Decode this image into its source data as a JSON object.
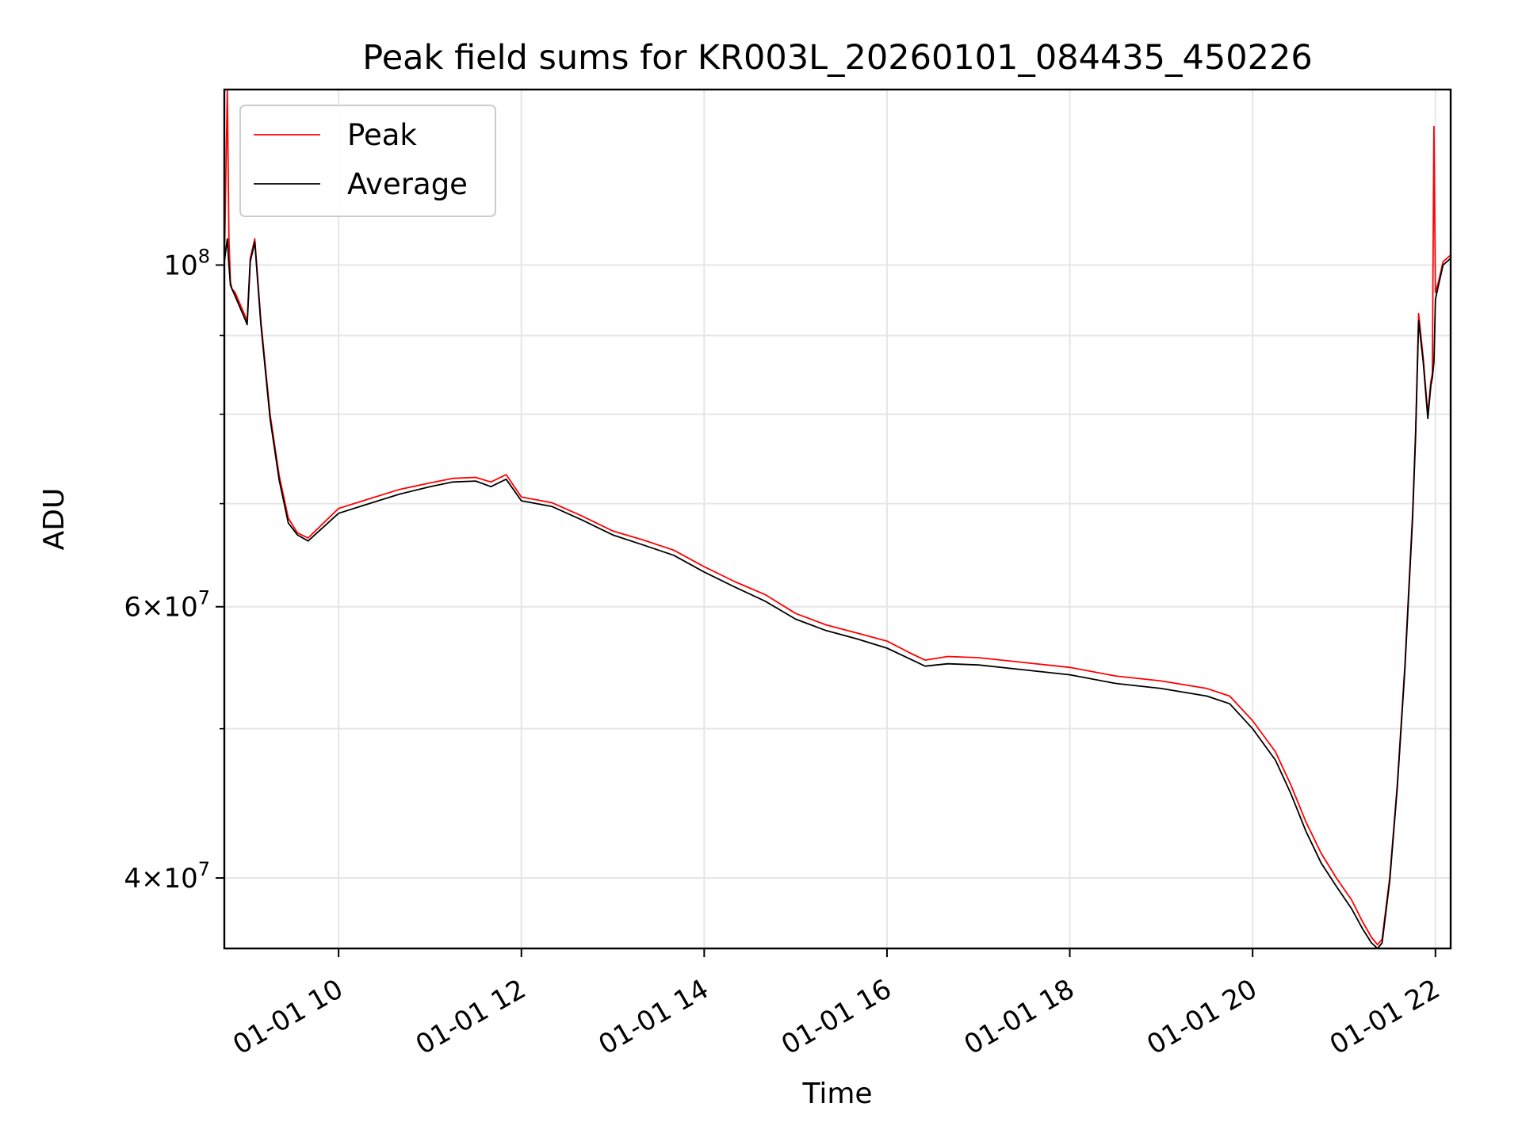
{
  "chart_data": {
    "type": "line",
    "title": "Peak field sums for KR003L_20260101_084435_450226",
    "xlabel": "Time",
    "ylabel": "ADU",
    "yscale": "log",
    "xlim": [
      "2026-01-01 08:45",
      "2026-01-01 22:10"
    ],
    "ylim": [
      36000000,
      130000000
    ],
    "grid": true,
    "legend_position": "upper-left",
    "x_ticks": [
      "01-01 10",
      "01-01 12",
      "01-01 14",
      "01-01 16",
      "01-01 18",
      "01-01 20",
      "01-01 22"
    ],
    "x_tick_times": [
      "2026-01-01 10:00",
      "2026-01-01 12:00",
      "2026-01-01 14:00",
      "2026-01-01 16:00",
      "2026-01-01 18:00",
      "2026-01-01 20:00",
      "2026-01-01 22:00"
    ],
    "y_ticks": [
      {
        "value": 40000000,
        "mantissa": "4",
        "exponent": "7"
      },
      {
        "value": 60000000,
        "mantissa": "6",
        "exponent": "7"
      },
      {
        "value": 100000000,
        "mantissa": "",
        "exponent": "8"
      }
    ],
    "y_minor_ticks": [
      50000000,
      70000000,
      80000000,
      90000000
    ],
    "series": [
      {
        "name": "Peak",
        "color": "#ff0000",
        "x": [
          "2026-01-01 08:45",
          "2026-01-01 08:47",
          "2026-01-01 08:48",
          "2026-01-01 08:49",
          "2026-01-01 08:50",
          "2026-01-01 08:52",
          "2026-01-01 08:58",
          "2026-01-01 09:00",
          "2026-01-01 09:02",
          "2026-01-01 09:05",
          "2026-01-01 09:09",
          "2026-01-01 09:15",
          "2026-01-01 09:21",
          "2026-01-01 09:27",
          "2026-01-01 09:33",
          "2026-01-01 09:40",
          "2026-01-01 10:00",
          "2026-01-01 10:20",
          "2026-01-01 10:40",
          "2026-01-01 11:00",
          "2026-01-01 11:15",
          "2026-01-01 11:30",
          "2026-01-01 11:40",
          "2026-01-01 11:50",
          "2026-01-01 12:00",
          "2026-01-01 12:20",
          "2026-01-01 12:40",
          "2026-01-01 13:00",
          "2026-01-01 13:20",
          "2026-01-01 13:40",
          "2026-01-01 14:00",
          "2026-01-01 14:20",
          "2026-01-01 14:40",
          "2026-01-01 15:00",
          "2026-01-01 15:20",
          "2026-01-01 15:40",
          "2026-01-01 16:00",
          "2026-01-01 16:15",
          "2026-01-01 16:25",
          "2026-01-01 16:40",
          "2026-01-01 17:00",
          "2026-01-01 17:30",
          "2026-01-01 18:00",
          "2026-01-01 18:30",
          "2026-01-01 19:00",
          "2026-01-01 19:30",
          "2026-01-01 19:45",
          "2026-01-01 20:00",
          "2026-01-01 20:15",
          "2026-01-01 20:25",
          "2026-01-01 20:35",
          "2026-01-01 20:45",
          "2026-01-01 20:55",
          "2026-01-01 21:05",
          "2026-01-01 21:12",
          "2026-01-01 21:18",
          "2026-01-01 21:22",
          "2026-01-01 21:25",
          "2026-01-01 21:30",
          "2026-01-01 21:35",
          "2026-01-01 21:40",
          "2026-01-01 21:45",
          "2026-01-01 21:47",
          "2026-01-01 21:49",
          "2026-01-01 21:52",
          "2026-01-01 21:55",
          "2026-01-01 21:57",
          "2026-01-01 21:58",
          "2026-01-01 21:59",
          "2026-01-01 22:00",
          "2026-01-01 22:02",
          "2026-01-01 22:05",
          "2026-01-01 22:10"
        ],
        "y": [
          100000000,
          130000000,
          104000000,
          97500000,
          96500000,
          96000000,
          93000000,
          92000000,
          101000000,
          104000000,
          92000000,
          80000000,
          73000000,
          68500000,
          67000000,
          66500000,
          69500000,
          70500000,
          71500000,
          72200000,
          72700000,
          72800000,
          72300000,
          73100000,
          70700000,
          70100000,
          68700000,
          67200000,
          66300000,
          65300000,
          63700000,
          62300000,
          61100000,
          59400000,
          58400000,
          57700000,
          57000000,
          56000000,
          55400000,
          55700000,
          55600000,
          55200000,
          54800000,
          54100000,
          53700000,
          53100000,
          52500000,
          50600000,
          48300000,
          46000000,
          43500000,
          41500000,
          40000000,
          38700000,
          37500000,
          36600000,
          36200000,
          36500000,
          40000000,
          46000000,
          55000000,
          69000000,
          78000000,
          93000000,
          87000000,
          80000000,
          84000000,
          85000000,
          123000000,
          96000000,
          97500000,
          100500000,
          101500000
        ]
      },
      {
        "name": "Average",
        "color": "#000000",
        "x": [
          "2026-01-01 08:45",
          "2026-01-01 08:47",
          "2026-01-01 08:48",
          "2026-01-01 08:49",
          "2026-01-01 08:50",
          "2026-01-01 08:52",
          "2026-01-01 08:58",
          "2026-01-01 09:00",
          "2026-01-01 09:02",
          "2026-01-01 09:05",
          "2026-01-01 09:09",
          "2026-01-01 09:15",
          "2026-01-01 09:21",
          "2026-01-01 09:27",
          "2026-01-01 09:33",
          "2026-01-01 09:40",
          "2026-01-01 10:00",
          "2026-01-01 10:20",
          "2026-01-01 10:40",
          "2026-01-01 11:00",
          "2026-01-01 11:15",
          "2026-01-01 11:30",
          "2026-01-01 11:40",
          "2026-01-01 11:50",
          "2026-01-01 12:00",
          "2026-01-01 12:20",
          "2026-01-01 12:40",
          "2026-01-01 13:00",
          "2026-01-01 13:20",
          "2026-01-01 13:40",
          "2026-01-01 14:00",
          "2026-01-01 14:20",
          "2026-01-01 14:40",
          "2026-01-01 15:00",
          "2026-01-01 15:20",
          "2026-01-01 15:40",
          "2026-01-01 16:00",
          "2026-01-01 16:15",
          "2026-01-01 16:25",
          "2026-01-01 16:40",
          "2026-01-01 17:00",
          "2026-01-01 17:30",
          "2026-01-01 18:00",
          "2026-01-01 18:30",
          "2026-01-01 19:00",
          "2026-01-01 19:30",
          "2026-01-01 19:45",
          "2026-01-01 20:00",
          "2026-01-01 20:15",
          "2026-01-01 20:25",
          "2026-01-01 20:35",
          "2026-01-01 20:45",
          "2026-01-01 20:55",
          "2026-01-01 21:05",
          "2026-01-01 21:12",
          "2026-01-01 21:18",
          "2026-01-01 21:22",
          "2026-01-01 21:25",
          "2026-01-01 21:30",
          "2026-01-01 21:35",
          "2026-01-01 21:40",
          "2026-01-01 21:45",
          "2026-01-01 21:47",
          "2026-01-01 21:49",
          "2026-01-01 21:52",
          "2026-01-01 21:55",
          "2026-01-01 21:57",
          "2026-01-01 21:58",
          "2026-01-01 21:59",
          "2026-01-01 22:00",
          "2026-01-01 22:02",
          "2026-01-01 22:05",
          "2026-01-01 22:10"
        ],
        "y": [
          100500000,
          104000000,
          100000000,
          97000000,
          96500000,
          95500000,
          92500000,
          91500000,
          100500000,
          103500000,
          91500000,
          79500000,
          72500000,
          68000000,
          66800000,
          66200000,
          69000000,
          70000000,
          71000000,
          71800000,
          72300000,
          72400000,
          71800000,
          72600000,
          70300000,
          69700000,
          68300000,
          66800000,
          65800000,
          64800000,
          63200000,
          61800000,
          60500000,
          58900000,
          57900000,
          57200000,
          56400000,
          55500000,
          54900000,
          55100000,
          55000000,
          54600000,
          54200000,
          53500000,
          53100000,
          52500000,
          51900000,
          50000000,
          47700000,
          45400000,
          42900000,
          40900000,
          39500000,
          38200000,
          37100000,
          36300000,
          36000000,
          36300000,
          39800000,
          45800000,
          54700000,
          68500000,
          77500000,
          92000000,
          86500000,
          79500000,
          83500000,
          84500000,
          86500000,
          95000000,
          97000000,
          100000000,
          101000000
        ]
      }
    ]
  }
}
